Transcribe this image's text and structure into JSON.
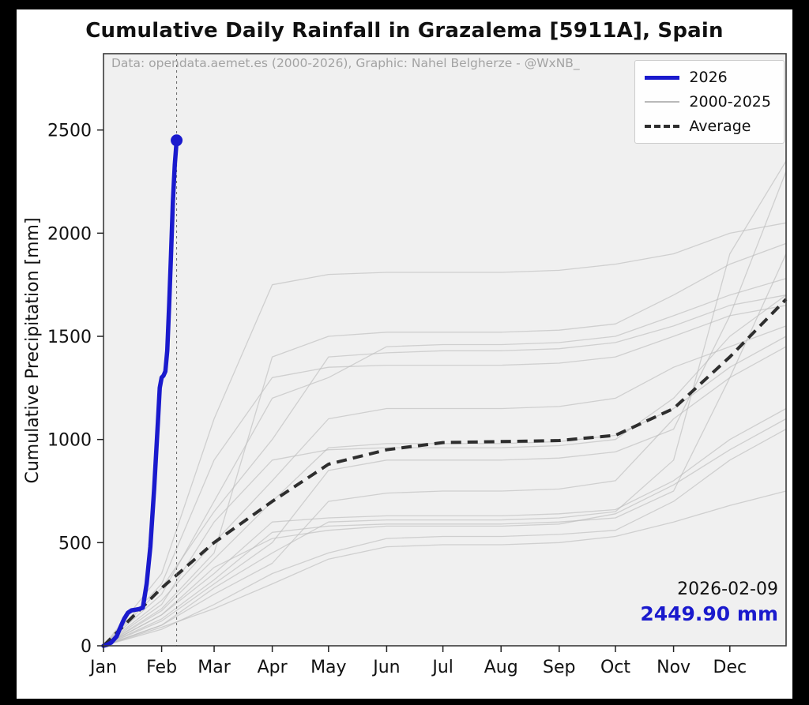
{
  "chart_data": {
    "type": "line",
    "title": "Cumulative Daily Rainfall in Grazalema [5911A], Spain",
    "attribution": "Data: opendata.aemet.es (2000-2026), Graphic: Nahel Belgherze - @WxNB_",
    "ylabel": "Cumulative Precipitation [mm]",
    "xlabel": "",
    "ylim": [
      0,
      2870
    ],
    "xlim_days": [
      1,
      365
    ],
    "grid": false,
    "legend_position": "upper right",
    "y_ticks": [
      0,
      500,
      1000,
      1500,
      2000,
      2500
    ],
    "x_ticks": [
      {
        "day": 1,
        "label": "Jan"
      },
      {
        "day": 32,
        "label": "Feb"
      },
      {
        "day": 60,
        "label": "Mar"
      },
      {
        "day": 91,
        "label": "Apr"
      },
      {
        "day": 121,
        "label": "May"
      },
      {
        "day": 152,
        "label": "Jun"
      },
      {
        "day": 182,
        "label": "Jul"
      },
      {
        "day": 213,
        "label": "Aug"
      },
      {
        "day": 244,
        "label": "Sep"
      },
      {
        "day": 274,
        "label": "Oct"
      },
      {
        "day": 305,
        "label": "Nov"
      },
      {
        "day": 335,
        "label": "Dec"
      }
    ],
    "legend": [
      {
        "label": "2026",
        "style": "solid-thick",
        "color": "#1a1acd"
      },
      {
        "label": "2000-2025",
        "style": "solid-thin",
        "color": "#b9b9b9"
      },
      {
        "label": "Average",
        "style": "dashed",
        "color": "#2e2e2e"
      }
    ],
    "annotation": {
      "date": "2026-02-09",
      "value": "2449.90 mm",
      "marker_day": 40,
      "marker_value": 2449.9
    },
    "colors": {
      "current": "#1a1acd",
      "history": "#bbbbbb",
      "average": "#2e2e2e",
      "plot_bg": "#f0f0f0",
      "figure_bg": "#ffffff",
      "outer_bg": "#000000",
      "vline": "#666666",
      "tick_text": "#111111"
    },
    "current": {
      "name": "2026",
      "days": [
        1,
        3,
        5,
        8,
        10,
        12,
        14,
        16,
        18,
        20,
        22,
        24,
        26,
        28,
        30,
        31,
        32,
        33,
        34,
        35,
        36,
        37,
        38,
        39,
        40
      ],
      "values": [
        0,
        5,
        15,
        45,
        90,
        130,
        160,
        172,
        175,
        178,
        185,
        300,
        480,
        760,
        1080,
        1250,
        1300,
        1310,
        1330,
        1430,
        1650,
        1900,
        2150,
        2330,
        2449.9
      ]
    },
    "x_days": [
      1,
      32,
      60,
      91,
      121,
      152,
      182,
      213,
      244,
      274,
      305,
      335,
      365
    ],
    "average_values": [
      0,
      280,
      500,
      700,
      880,
      950,
      985,
      990,
      995,
      1020,
      1150,
      1400,
      1680
    ],
    "history_series": [
      [
        0,
        150,
        380,
        520,
        560,
        580,
        580,
        580,
        590,
        640,
        780,
        950,
        1100
      ],
      [
        0,
        200,
        600,
        900,
        950,
        960,
        960,
        960,
        970,
        1000,
        1200,
        1500,
        1700
      ],
      [
        0,
        100,
        250,
        400,
        700,
        740,
        750,
        750,
        760,
        800,
        1100,
        1300,
        1450
      ],
      [
        0,
        350,
        1100,
        1750,
        1800,
        1810,
        1810,
        1810,
        1820,
        1850,
        1900,
        2000,
        2050
      ],
      [
        0,
        180,
        450,
        1400,
        1500,
        1520,
        1520,
        1520,
        1530,
        1560,
        1700,
        1850,
        1950
      ],
      [
        0,
        120,
        300,
        500,
        850,
        900,
        900,
        900,
        910,
        940,
        1050,
        1600,
        2300
      ],
      [
        0,
        80,
        200,
        350,
        450,
        520,
        530,
        530,
        540,
        560,
        700,
        900,
        1050
      ],
      [
        0,
        250,
        700,
        1200,
        1300,
        1450,
        1460,
        1460,
        1470,
        1500,
        1600,
        1700,
        1780
      ],
      [
        0,
        150,
        350,
        600,
        620,
        630,
        630,
        630,
        640,
        660,
        800,
        1000,
        1150
      ],
      [
        0,
        300,
        900,
        1300,
        1350,
        1360,
        1360,
        1360,
        1370,
        1400,
        1500,
        1600,
        1650
      ],
      [
        0,
        100,
        280,
        450,
        600,
        610,
        610,
        610,
        620,
        650,
        900,
        1900,
        2350
      ],
      [
        0,
        220,
        500,
        800,
        1100,
        1150,
        1150,
        1150,
        1160,
        1200,
        1350,
        1450,
        1550
      ],
      [
        0,
        130,
        320,
        550,
        580,
        590,
        590,
        590,
        600,
        620,
        750,
        1300,
        1900
      ],
      [
        0,
        90,
        180,
        300,
        420,
        480,
        490,
        490,
        500,
        530,
        600,
        680,
        750
      ],
      [
        0,
        280,
        650,
        1000,
        1400,
        1420,
        1430,
        1430,
        1440,
        1470,
        1550,
        1650,
        1700
      ],
      [
        0,
        170,
        420,
        700,
        960,
        980,
        980,
        980,
        990,
        1020,
        1150,
        1350,
        1500
      ]
    ]
  }
}
